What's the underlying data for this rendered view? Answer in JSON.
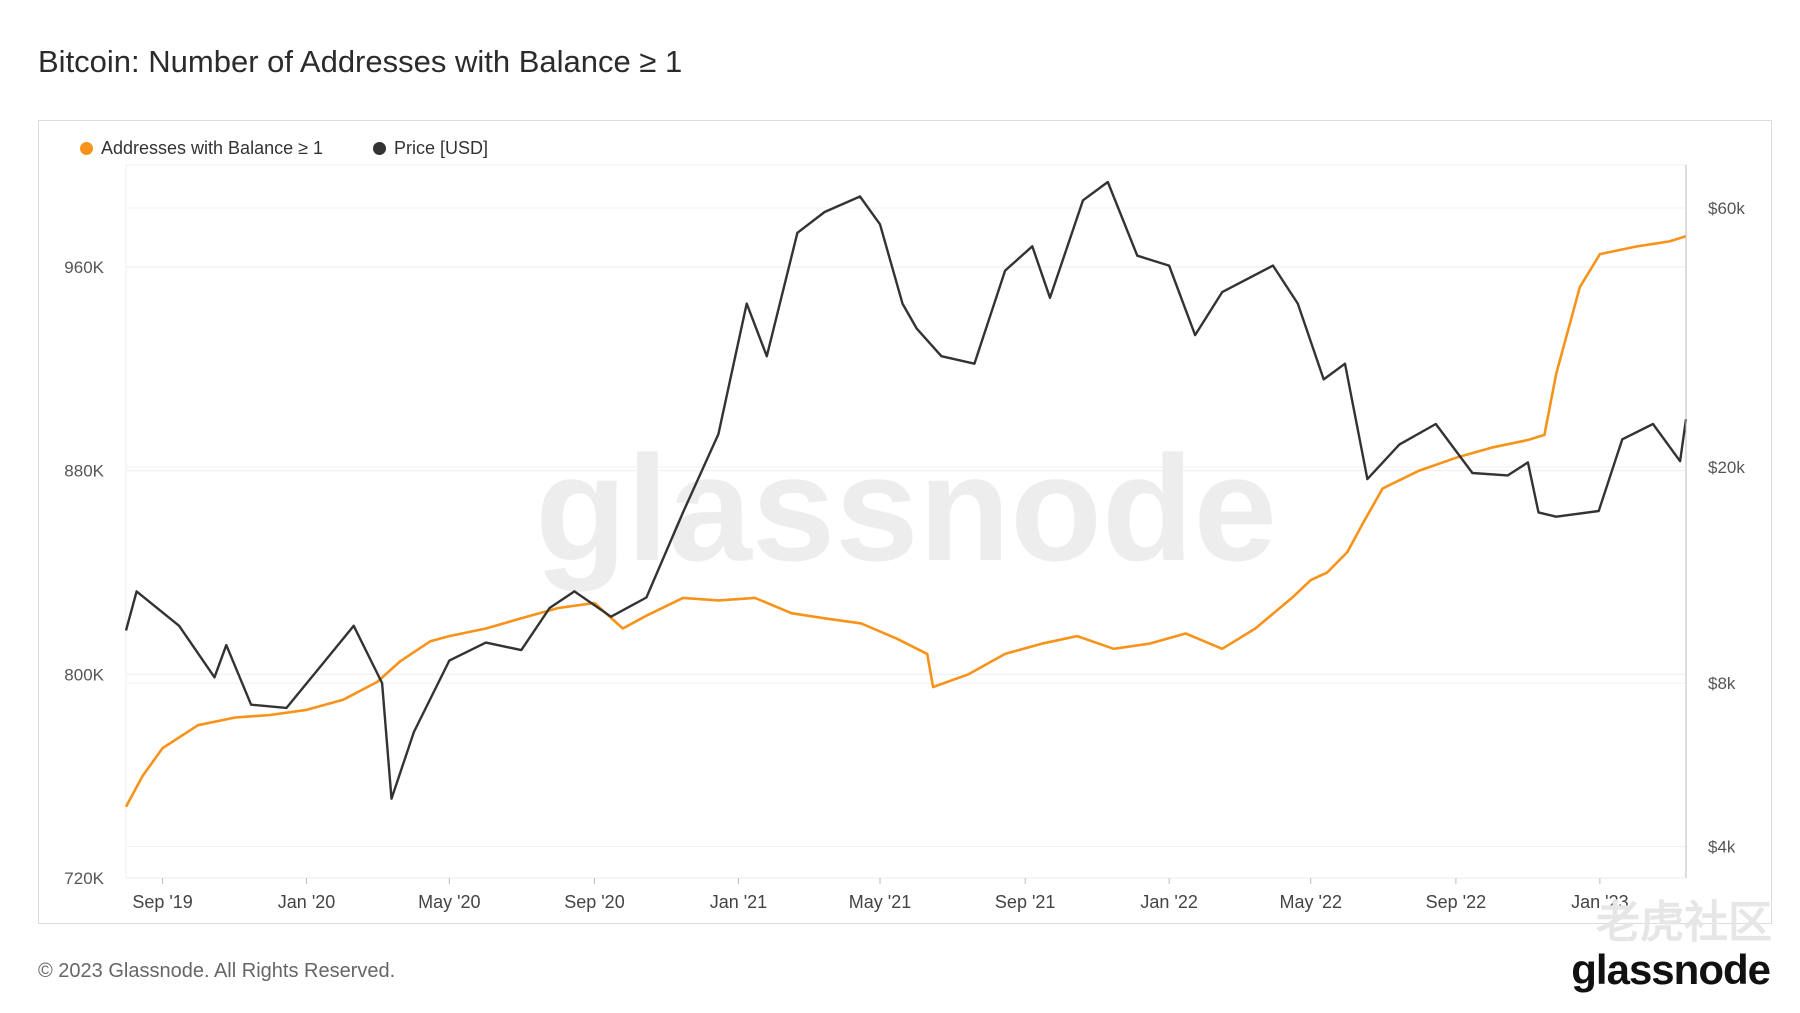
{
  "title": "Bitcoin: Number of Addresses with Balance ≥ 1",
  "copyright": "© 2023 Glassnode. All Rights Reserved.",
  "brand": "glassnode",
  "watermark": "glassnode",
  "corner_watermark": "老虎社区",
  "legend": [
    {
      "label": "Addresses with Balance ≥ 1",
      "color": "#f7931a"
    },
    {
      "label": "Price [USD]",
      "color": "#333333"
    }
  ],
  "chart_data": {
    "type": "line",
    "title": "Bitcoin: Number of Addresses with Balance ≥ 1",
    "x_ticks": [
      "Sep '19",
      "Jan '20",
      "May '20",
      "Sep '20",
      "Jan '21",
      "May '21",
      "Sep '21",
      "Jan '22",
      "May '22",
      "Sep '22",
      "Jan '23"
    ],
    "x_range": [
      "2019-08-01",
      "2023-03-15"
    ],
    "y_left": {
      "ticks": [
        "720K",
        "800K",
        "880K",
        "960K"
      ],
      "tick_values": [
        720000,
        800000,
        880000,
        960000
      ],
      "range": [
        720000,
        1000000
      ]
    },
    "y_right": {
      "ticks": [
        "$4k",
        "$8k",
        "$20k",
        "$60k"
      ],
      "tick_values": [
        4000,
        8000,
        20000,
        60000
      ],
      "scale": "log",
      "range": [
        3500,
        72000
      ]
    },
    "grid": true,
    "legend_position": "top-left",
    "series": [
      {
        "name": "Addresses with Balance ≥ 1",
        "axis": "left",
        "color": "#f7931a",
        "x": [
          "2019-08-01",
          "2019-08-15",
          "2019-09-01",
          "2019-10-01",
          "2019-11-01",
          "2019-12-01",
          "2020-01-01",
          "2020-02-01",
          "2020-03-01",
          "2020-03-20",
          "2020-04-15",
          "2020-05-01",
          "2020-06-01",
          "2020-07-01",
          "2020-08-01",
          "2020-09-01",
          "2020-09-25",
          "2020-10-15",
          "2020-11-15",
          "2020-12-15",
          "2021-01-15",
          "2021-02-15",
          "2021-03-15",
          "2021-04-15",
          "2021-05-15",
          "2021-06-10",
          "2021-06-15",
          "2021-07-15",
          "2021-08-15",
          "2021-09-15",
          "2021-10-15",
          "2021-11-15",
          "2021-12-15",
          "2022-01-15",
          "2022-02-15",
          "2022-03-15",
          "2022-04-15",
          "2022-05-01",
          "2022-05-15",
          "2022-06-01",
          "2022-06-15",
          "2022-07-01",
          "2022-08-01",
          "2022-09-01",
          "2022-10-01",
          "2022-11-01",
          "2022-11-15",
          "2022-11-25",
          "2022-12-15",
          "2023-01-01",
          "2023-02-01",
          "2023-03-01",
          "2023-03-15"
        ],
        "values": [
          748000,
          760000,
          771000,
          780000,
          783000,
          784000,
          786000,
          790000,
          797000,
          805000,
          813000,
          815000,
          818000,
          822000,
          826000,
          828000,
          818000,
          823000,
          830000,
          829000,
          830000,
          824000,
          822000,
          820000,
          814000,
          808000,
          795000,
          800000,
          808000,
          812000,
          815000,
          810000,
          812000,
          816000,
          810000,
          818000,
          830000,
          837000,
          840000,
          848000,
          860000,
          873000,
          880000,
          885000,
          889000,
          892000,
          894000,
          918000,
          952000,
          965000,
          968000,
          970000,
          972000
        ]
      },
      {
        "name": "Price [USD]",
        "axis": "right",
        "color": "#333333",
        "x": [
          "2019-08-01",
          "2019-08-10",
          "2019-09-15",
          "2019-10-15",
          "2019-10-25",
          "2019-11-15",
          "2019-12-15",
          "2020-01-15",
          "2020-02-10",
          "2020-03-05",
          "2020-03-13",
          "2020-04-01",
          "2020-05-01",
          "2020-06-01",
          "2020-07-01",
          "2020-07-25",
          "2020-08-15",
          "2020-09-15",
          "2020-10-15",
          "2020-11-15",
          "2020-12-15",
          "2021-01-08",
          "2021-01-25",
          "2021-02-20",
          "2021-03-15",
          "2021-04-14",
          "2021-05-01",
          "2021-05-20",
          "2021-06-01",
          "2021-06-22",
          "2021-07-20",
          "2021-08-15",
          "2021-09-07",
          "2021-09-22",
          "2021-10-20",
          "2021-11-10",
          "2021-12-05",
          "2022-01-01",
          "2022-01-23",
          "2022-02-15",
          "2022-03-30",
          "2022-04-20",
          "2022-05-12",
          "2022-05-30",
          "2022-06-18",
          "2022-07-15",
          "2022-08-15",
          "2022-09-15",
          "2022-10-15",
          "2022-11-01",
          "2022-11-10",
          "2022-11-25",
          "2022-12-31",
          "2023-01-20",
          "2023-02-15",
          "2023-03-10",
          "2023-03-15"
        ],
        "values": [
          10000,
          11800,
          10200,
          8200,
          9400,
          7300,
          7200,
          8700,
          10200,
          8000,
          4900,
          6500,
          8800,
          9500,
          9200,
          11000,
          11800,
          10600,
          11500,
          16500,
          23000,
          40000,
          32000,
          54000,
          59000,
          63000,
          56000,
          40000,
          36000,
          32000,
          31000,
          46000,
          51000,
          41000,
          62000,
          67000,
          49000,
          47000,
          35000,
          42000,
          47000,
          40000,
          29000,
          31000,
          19000,
          22000,
          24000,
          19500,
          19300,
          20400,
          16500,
          16200,
          16600,
          22500,
          24000,
          20500,
          24500
        ]
      }
    ]
  }
}
